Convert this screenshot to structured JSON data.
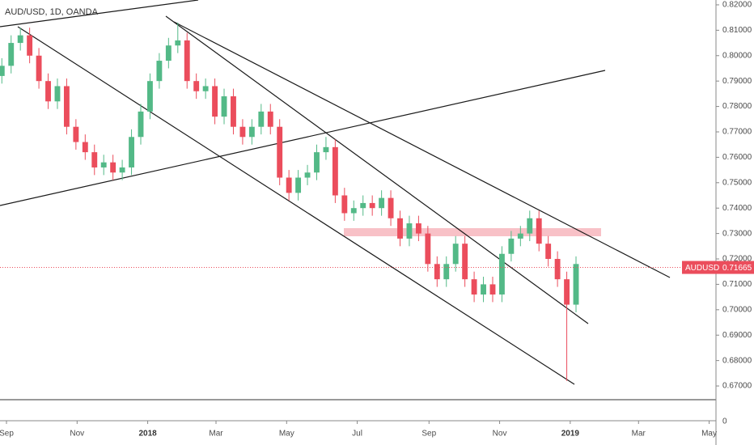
{
  "chart_data": {
    "type": "candlestick",
    "title": "AUD/USD, 1D, OANDA",
    "symbol": "AUDUSD",
    "last_price": 0.71665,
    "last_price_label": "0.71665",
    "up_color": "#53b987",
    "down_color": "#eb4d5c",
    "x": [
      -4,
      4,
      12,
      20,
      28,
      36,
      44,
      52,
      60,
      68,
      76,
      84,
      92,
      100,
      108,
      116,
      124,
      132,
      140,
      148,
      156,
      164,
      172,
      180,
      188,
      196,
      204,
      212,
      220,
      228,
      236,
      244,
      252,
      260,
      268,
      276,
      284,
      292,
      300,
      308,
      316,
      324,
      332,
      340,
      348,
      356,
      364,
      372,
      380,
      388,
      396,
      404,
      412,
      420,
      428,
      436,
      444,
      452,
      460,
      468,
      476,
      484,
      492
    ],
    "open": [
      0.792,
      0.796,
      0.805,
      0.808,
      0.8,
      0.79,
      0.782,
      0.788,
      0.772,
      0.766,
      0.762,
      0.756,
      0.758,
      0.754,
      0.756,
      0.768,
      0.778,
      0.79,
      0.798,
      0.804,
      0.806,
      0.79,
      0.786,
      0.788,
      0.776,
      0.784,
      0.772,
      0.768,
      0.772,
      0.778,
      0.772,
      0.752,
      0.746,
      0.752,
      0.754,
      0.762,
      0.764,
      0.745,
      0.738,
      0.74,
      0.742,
      0.74,
      0.744,
      0.736,
      0.728,
      0.734,
      0.73,
      0.718,
      0.712,
      0.718,
      0.726,
      0.712,
      0.706,
      0.71,
      0.706,
      0.722,
      0.728,
      0.73,
      0.736,
      0.726,
      0.72,
      0.712,
      0.702
    ],
    "high": [
      0.799,
      0.808,
      0.811,
      0.811,
      0.803,
      0.793,
      0.791,
      0.791,
      0.775,
      0.769,
      0.765,
      0.761,
      0.761,
      0.759,
      0.771,
      0.781,
      0.793,
      0.801,
      0.807,
      0.813,
      0.809,
      0.793,
      0.791,
      0.791,
      0.787,
      0.787,
      0.775,
      0.775,
      0.781,
      0.781,
      0.775,
      0.755,
      0.755,
      0.757,
      0.765,
      0.768,
      0.767,
      0.748,
      0.743,
      0.745,
      0.745,
      0.747,
      0.747,
      0.739,
      0.737,
      0.737,
      0.733,
      0.721,
      0.721,
      0.729,
      0.729,
      0.715,
      0.713,
      0.713,
      0.725,
      0.731,
      0.733,
      0.739,
      0.739,
      0.729,
      0.723,
      0.715,
      0.721
    ],
    "low": [
      0.789,
      0.793,
      0.802,
      0.797,
      0.787,
      0.779,
      0.779,
      0.769,
      0.763,
      0.759,
      0.753,
      0.753,
      0.751,
      0.751,
      0.753,
      0.765,
      0.775,
      0.787,
      0.795,
      0.801,
      0.787,
      0.783,
      0.783,
      0.773,
      0.773,
      0.769,
      0.765,
      0.765,
      0.769,
      0.769,
      0.749,
      0.743,
      0.743,
      0.749,
      0.751,
      0.759,
      0.742,
      0.735,
      0.735,
      0.737,
      0.737,
      0.737,
      0.733,
      0.725,
      0.725,
      0.727,
      0.715,
      0.709,
      0.709,
      0.715,
      0.709,
      0.703,
      0.703,
      0.703,
      0.703,
      0.719,
      0.725,
      0.727,
      0.723,
      0.717,
      0.709,
      0.672,
      0.699
    ],
    "close": [
      0.796,
      0.805,
      0.808,
      0.8,
      0.79,
      0.782,
      0.788,
      0.772,
      0.766,
      0.762,
      0.756,
      0.758,
      0.754,
      0.756,
      0.768,
      0.778,
      0.79,
      0.798,
      0.804,
      0.806,
      0.79,
      0.786,
      0.788,
      0.776,
      0.784,
      0.772,
      0.768,
      0.772,
      0.778,
      0.772,
      0.752,
      0.746,
      0.752,
      0.754,
      0.762,
      0.764,
      0.745,
      0.738,
      0.74,
      0.742,
      0.74,
      0.744,
      0.736,
      0.728,
      0.734,
      0.73,
      0.718,
      0.712,
      0.718,
      0.726,
      0.712,
      0.706,
      0.71,
      0.706,
      0.722,
      0.728,
      0.73,
      0.736,
      0.726,
      0.72,
      0.712,
      0.702,
      0.718
    ],
    "xlim": [
      -5.6,
      612.9
    ],
    "xticks": [
      {
        "value": 0,
        "label": "Sep"
      },
      {
        "value": 61,
        "label": "Nov"
      },
      {
        "value": 122,
        "label": "2018"
      },
      {
        "value": 181,
        "label": "Mar"
      },
      {
        "value": 242,
        "label": "May"
      },
      {
        "value": 303,
        "label": "Jul"
      },
      {
        "value": 365,
        "label": "Sep"
      },
      {
        "value": 426,
        "label": "Nov"
      },
      {
        "value": 487,
        "label": "2019"
      },
      {
        "value": 546,
        "label": "Mar"
      },
      {
        "value": 607,
        "label": "May"
      }
    ],
    "ylim": [
      0.6646,
      0.8219
    ],
    "yticks": [
      {
        "value": 0.67,
        "label": "0.67000"
      },
      {
        "value": 0.68,
        "label": "0.68000"
      },
      {
        "value": 0.69,
        "label": "0.69000"
      },
      {
        "value": 0.7,
        "label": "0.70000"
      },
      {
        "value": 0.71,
        "label": "0.71000"
      },
      {
        "value": 0.72,
        "label": "0.72000"
      },
      {
        "value": 0.73,
        "label": "0.73000"
      },
      {
        "value": 0.74,
        "label": "0.74000"
      },
      {
        "value": 0.75,
        "label": "0.75000"
      },
      {
        "value": 0.76,
        "label": "0.76000"
      },
      {
        "value": 0.77,
        "label": "0.77000"
      },
      {
        "value": 0.78,
        "label": "0.78000"
      },
      {
        "value": 0.79,
        "label": "0.79000"
      },
      {
        "value": 0.8,
        "label": "0.80000"
      },
      {
        "value": 0.81,
        "label": "0.81000"
      },
      {
        "value": 0.82,
        "label": "0.82000"
      }
    ],
    "lower_pane_tick": "0"
  }
}
